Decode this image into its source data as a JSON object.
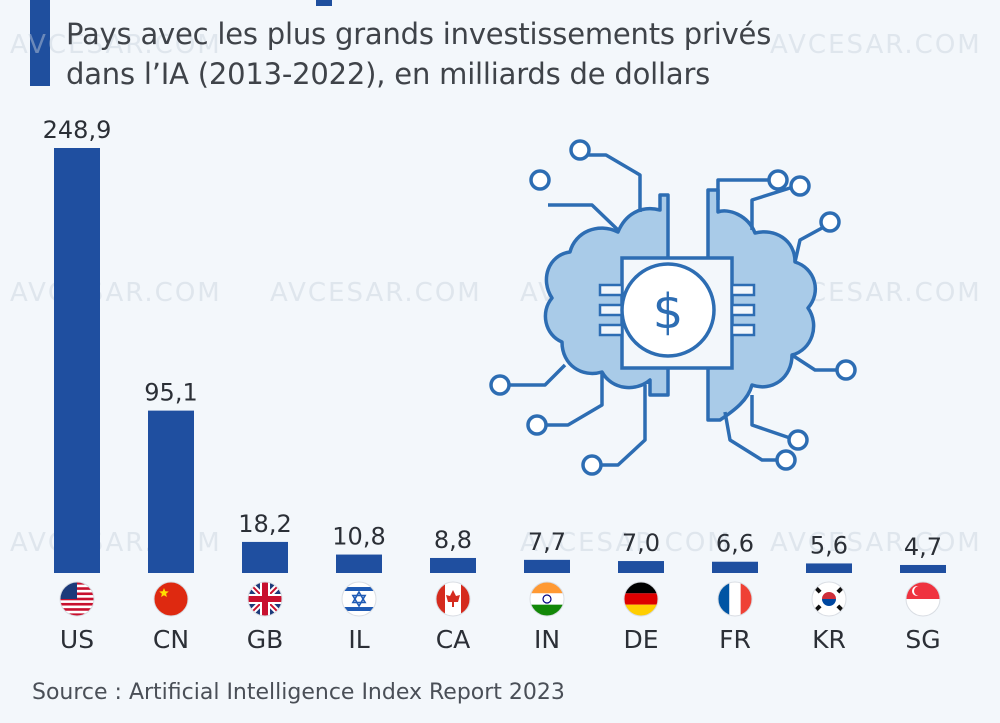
{
  "header": {
    "subtitle": "Pays avec les plus grands investissements privés dans l’IA (2013-2022), en milliards de dollars"
  },
  "footer": {
    "source": "Source : Artificial Intelligence Index Report 2023"
  },
  "watermark": "AVCESAR.COM",
  "colors": {
    "bar": "#1f4fa0",
    "illustration_fill": "#a9cbe8",
    "illustration_stroke": "#2d6db3"
  },
  "chart_data": {
    "type": "bar",
    "title": "Pays avec les plus grands investissements privés dans l’IA (2013-2022), en milliards de dollars",
    "xlabel": "",
    "ylabel": "",
    "ylim": [
      0,
      248.9
    ],
    "grid": false,
    "categories": [
      "US",
      "CN",
      "GB",
      "IL",
      "CA",
      "IN",
      "DE",
      "FR",
      "KR",
      "SG"
    ],
    "values": [
      248.9,
      95.1,
      18.2,
      10.8,
      8.8,
      7.7,
      7.0,
      6.6,
      5.6,
      4.7
    ],
    "value_labels": [
      "248,9",
      "95,1",
      "18,2",
      "10,8",
      "8,8",
      "7,7",
      "7,0",
      "6,6",
      "5,6",
      "4,7"
    ],
    "flags": [
      "us-flag",
      "cn-flag",
      "gb-flag",
      "il-flag",
      "ca-flag",
      "in-flag",
      "de-flag",
      "fr-flag",
      "kr-flag",
      "sg-flag"
    ]
  }
}
